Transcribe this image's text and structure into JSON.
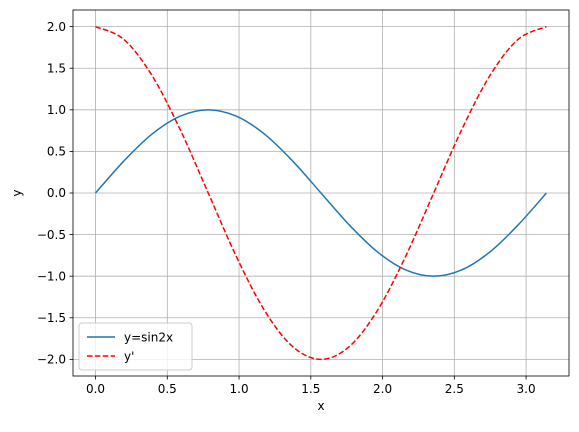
{
  "chart_data": {
    "type": "line",
    "title": "",
    "xlabel": "x",
    "ylabel": "y",
    "xlim": [
      -0.157,
      3.299
    ],
    "ylim": [
      -2.2,
      2.2
    ],
    "xticks": [
      0.0,
      0.5,
      1.0,
      1.5,
      2.0,
      2.5,
      3.0
    ],
    "xtick_labels": [
      "0.0",
      "0.5",
      "1.0",
      "1.5",
      "2.0",
      "2.5",
      "3.0"
    ],
    "yticks": [
      -2.0,
      -1.5,
      -1.0,
      -0.5,
      0.0,
      0.5,
      1.0,
      1.5,
      2.0
    ],
    "ytick_labels": [
      "−2.0",
      "−1.5",
      "−1.0",
      "−0.5",
      "0.0",
      "0.5",
      "1.0",
      "1.5",
      "2.0"
    ],
    "grid": true,
    "legend_position": "lower-left",
    "x": [
      0.0,
      0.1963,
      0.3927,
      0.589,
      0.7854,
      0.9817,
      1.1781,
      1.3744,
      1.5708,
      1.7671,
      1.9635,
      2.1598,
      2.3562,
      2.5525,
      2.7489,
      2.9452,
      3.1416
    ],
    "series": [
      {
        "name": "y=sin2x",
        "color": "#1f77b4",
        "dash": "solid",
        "values": [
          0.0,
          0.3827,
          0.7071,
          0.9239,
          1.0,
          0.9239,
          0.7071,
          0.3827,
          0.0,
          -0.3827,
          -0.7071,
          -0.9239,
          -1.0,
          -0.9239,
          -0.7071,
          -0.3827,
          0.0
        ]
      },
      {
        "name": "y'",
        "color": "#ff0000",
        "dash": "dashed",
        "values": [
          2.0,
          1.8478,
          1.4142,
          0.7654,
          0.0,
          -0.7654,
          -1.4142,
          -1.8478,
          -2.0,
          -1.8478,
          -1.4142,
          -0.7654,
          0.0,
          0.7654,
          1.4142,
          1.8478,
          2.0
        ]
      }
    ]
  }
}
